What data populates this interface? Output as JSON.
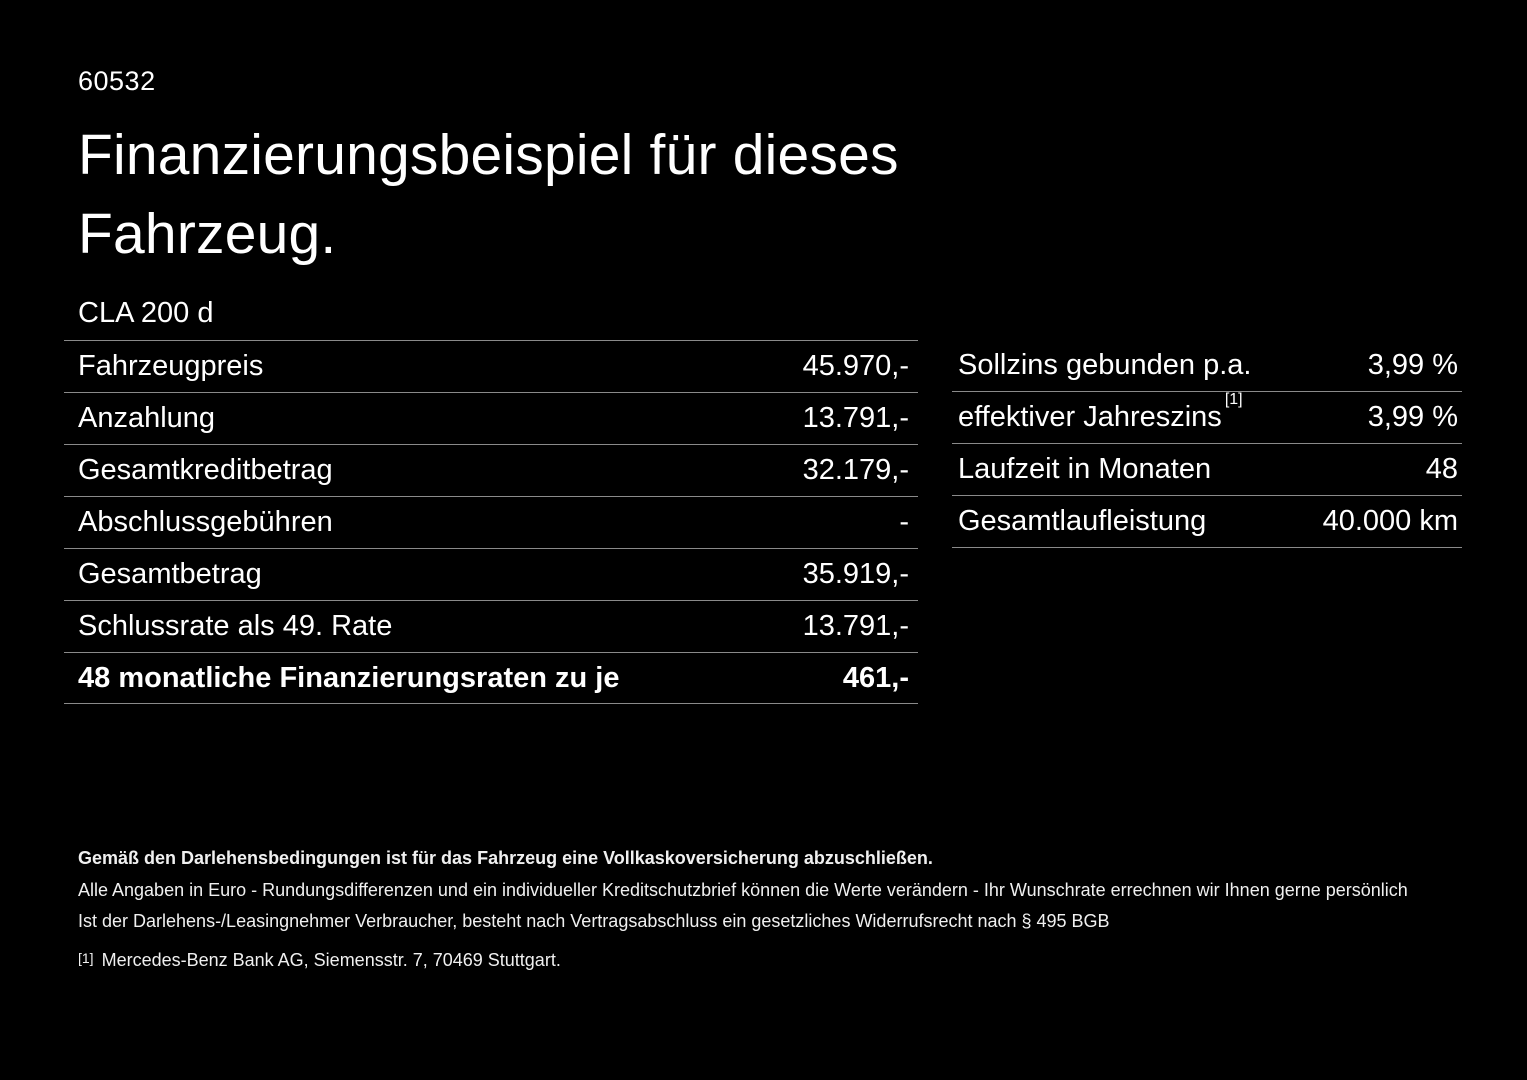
{
  "page": {
    "doc_number": "60532",
    "title": "Finanzierungsbeispiel für dieses Fahrzeug.",
    "model": "CLA 200 d"
  },
  "colors": {
    "background": "#000000",
    "text": "#ffffff",
    "divider": "#8a8a8a"
  },
  "left_table": {
    "rows": [
      {
        "label": "Fahrzeugpreis",
        "value": "45.970,-"
      },
      {
        "label": "Anzahlung",
        "value": "13.791,-"
      },
      {
        "label": "Gesamtkreditbetrag",
        "value": "32.179,-"
      },
      {
        "label": "Abschlussgebühren",
        "value": "-"
      },
      {
        "label": "Gesamtbetrag",
        "value": "35.919,-"
      },
      {
        "label": "Schlussrate als 49. Rate",
        "value": "13.791,-"
      },
      {
        "label": "48 monatliche Finanzierungsraten zu je",
        "value": "461,-"
      }
    ]
  },
  "right_table": {
    "rows": [
      {
        "label": "Sollzins gebunden p.a.",
        "value": "3,99 %"
      },
      {
        "label": "effektiver Jahreszins",
        "footnote_marker": "[1]",
        "value": "3,99 %"
      },
      {
        "label": "Laufzeit in Monaten",
        "value": "48"
      },
      {
        "label": "Gesamtlaufleistung",
        "value": "40.000 km"
      }
    ]
  },
  "footer": {
    "insurance_note": "Gemäß den Darlehensbedingungen ist für das Fahrzeug eine Vollkaskoversicherung abzuschließen.",
    "euro_note": "Alle Angaben in Euro - Rundungsdifferenzen und ein individueller Kreditschutzbrief können die Werte verändern - Ihr Wunschrate errechnen wir Ihnen gerne persönlich",
    "withdrawal_note": "Ist der Darlehens-/Leasingnehmer Verbraucher, besteht nach Vertragsabschluss ein gesetzliches Widerrufsrecht nach § 495 BGB",
    "footnote_marker": "[1]",
    "footnote_text": "Mercedes-Benz Bank AG, Siemensstr. 7, 70469 Stuttgart."
  }
}
